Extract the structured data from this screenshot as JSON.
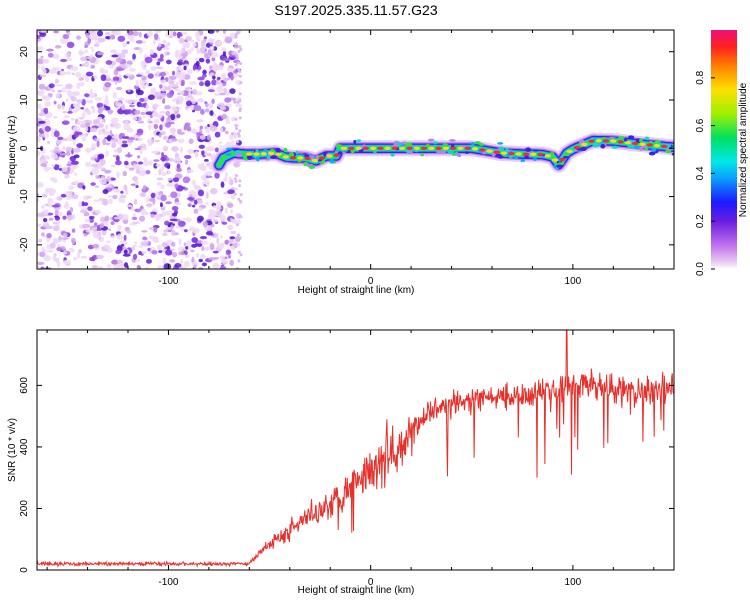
{
  "title": "S197.2025.335.11.57.G23",
  "colors": {
    "snr_line": "#e8302a",
    "ridge_core": "#e83030",
    "scatter": "#7a2ae0",
    "axis": "#000000"
  },
  "chart_data": [
    {
      "id": "spectrogram",
      "type": "heatmap",
      "title": "S197.2025.335.11.57.G23",
      "xlabel": "Height of straight line (km)",
      "ylabel": "Frequency (Hz)",
      "xlim": [
        -165,
        150
      ],
      "ylim": [
        -25,
        24.5
      ],
      "xticks": [
        -100,
        0,
        100
      ],
      "xtick_labels": [
        "-100",
        "0",
        "100"
      ],
      "yticks": [
        -20,
        -10,
        0,
        10,
        20
      ],
      "ytick_labels": [
        "-20",
        "-10",
        "0",
        "10",
        "20"
      ],
      "noise_region_x": [
        -165,
        -65
      ],
      "ridge": {
        "x": [
          -75,
          -73,
          -68,
          -62,
          -55,
          -47,
          -42,
          -38,
          -32,
          -27,
          -22,
          -17,
          -15,
          -5,
          10,
          20,
          35,
          50,
          65,
          75,
          85,
          90,
          93,
          97,
          100,
          110,
          120,
          135,
          150
        ],
        "y": [
          -3.5,
          -2,
          -1,
          -1.2,
          -1.2,
          -1,
          -1.8,
          -2,
          -2,
          -2.6,
          -1.6,
          -1.6,
          0,
          0,
          0,
          0,
          0,
          0,
          -1,
          -1.2,
          -1.3,
          -1.8,
          -3.4,
          -1,
          -0.2,
          1.6,
          1.5,
          0.8,
          0.2
        ]
      },
      "colorbar": {
        "label": "Normalized spectral amplitude",
        "range": [
          0,
          1
        ],
        "ticks": [
          0.0,
          0.2,
          0.4,
          0.6,
          0.8
        ],
        "tick_labels": [
          "0.0",
          "0.2",
          "0.4",
          "0.6",
          "0.8"
        ]
      }
    },
    {
      "id": "snr",
      "type": "line",
      "xlabel": "Height of straight line (km)",
      "ylabel": "SNR (10 * v/v)",
      "xlim": [
        -165,
        150
      ],
      "ylim": [
        0,
        780
      ],
      "xticks": [
        -100,
        0,
        100
      ],
      "xtick_labels": [
        "-100",
        "0",
        "100"
      ],
      "yticks": [
        0,
        200,
        400,
        600
      ],
      "ytick_labels": [
        "0",
        "200",
        "400",
        "600"
      ],
      "series": [
        {
          "name": "SNR",
          "trend_x": [
            -165,
            -60,
            -55,
            -40,
            -20,
            -10,
            0,
            10,
            20,
            30,
            40,
            50,
            60,
            70,
            80,
            90,
            100,
            110,
            120,
            130,
            150
          ],
          "trend_y": [
            20,
            20,
            60,
            130,
            220,
            280,
            330,
            400,
            460,
            510,
            540,
            550,
            560,
            570,
            580,
            590,
            600,
            600,
            590,
            580,
            590
          ],
          "peak": {
            "x": 97,
            "y": 780
          }
        }
      ]
    }
  ]
}
